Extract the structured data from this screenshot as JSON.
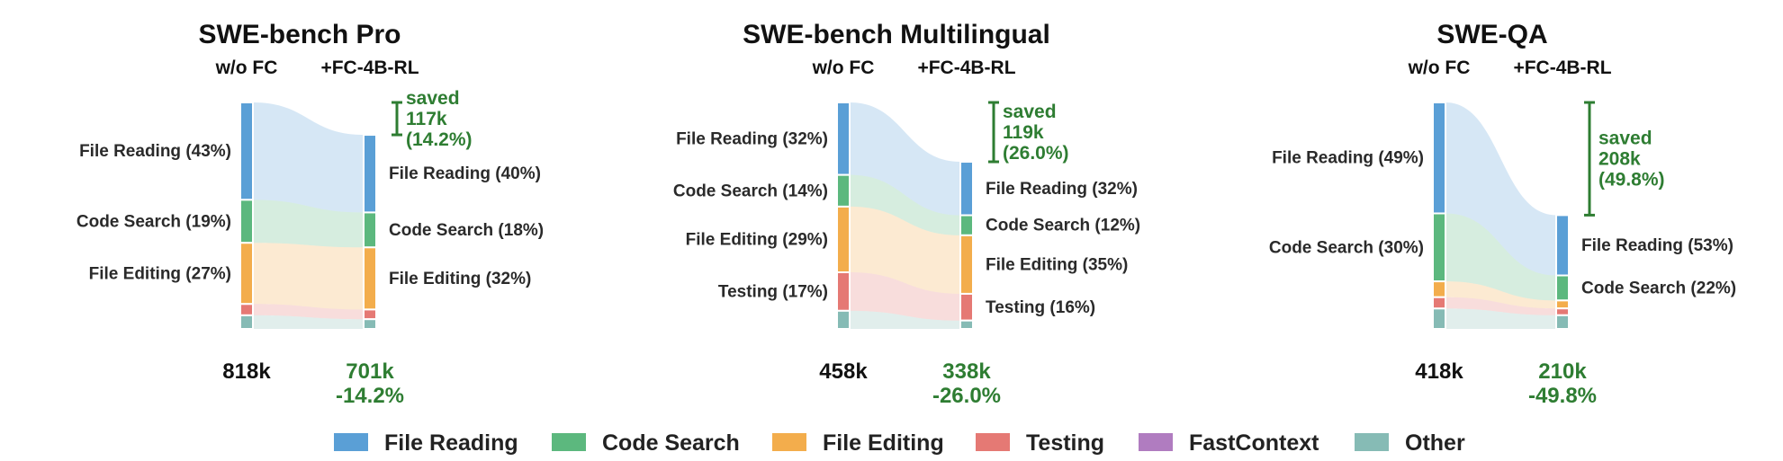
{
  "colors": {
    "File Reading": "#5a9fd6",
    "Code Search": "#5cb87e",
    "File Editing": "#f3ad4c",
    "Testing": "#e57974",
    "FastContext": "#b07cc0",
    "Other": "#86bbb5",
    "saved": "#2e7d32"
  },
  "legend": [
    "File Reading",
    "Code Search",
    "File Editing",
    "Testing",
    "FastContext",
    "Other"
  ],
  "chart_data": [
    {
      "type": "sankey",
      "title": "SWE-bench Pro",
      "column_labels": [
        "w/o FC",
        "+FC-4B-RL"
      ],
      "left_total_label": "818k",
      "right_total_label": "701k",
      "right_change_label": "-14.2%",
      "saved_label": "saved",
      "saved_amount": "117k",
      "saved_pct": "(14.2%)",
      "left_total": 818,
      "right_total": 701,
      "left": [
        {
          "category": "File Reading",
          "share": 0.43,
          "label": "File Reading (43%)"
        },
        {
          "category": "Code Search",
          "share": 0.19,
          "label": "Code Search (19%)"
        },
        {
          "category": "File Editing",
          "share": 0.27,
          "label": "File Editing (27%)"
        },
        {
          "category": "Testing",
          "share": 0.05,
          "label": ""
        },
        {
          "category": "Other",
          "share": 0.06,
          "label": ""
        }
      ],
      "right": [
        {
          "category": "File Reading",
          "share": 0.4,
          "label": "File Reading (40%)"
        },
        {
          "category": "Code Search",
          "share": 0.18,
          "label": "Code Search (18%)"
        },
        {
          "category": "File Editing",
          "share": 0.32,
          "label": "File Editing (32%)"
        },
        {
          "category": "Testing",
          "share": 0.05,
          "label": ""
        },
        {
          "category": "Other",
          "share": 0.05,
          "label": ""
        }
      ]
    },
    {
      "type": "sankey",
      "title": "SWE-bench Multilingual",
      "column_labels": [
        "w/o FC",
        "+FC-4B-RL"
      ],
      "left_total_label": "458k",
      "right_total_label": "338k",
      "right_change_label": "-26.0%",
      "saved_label": "saved",
      "saved_amount": "119k",
      "saved_pct": "(26.0%)",
      "left_total": 458,
      "right_total": 338,
      "left": [
        {
          "category": "File Reading",
          "share": 0.32,
          "label": "File Reading (32%)"
        },
        {
          "category": "Code Search",
          "share": 0.14,
          "label": "Code Search (14%)"
        },
        {
          "category": "File Editing",
          "share": 0.29,
          "label": "File Editing (29%)"
        },
        {
          "category": "Testing",
          "share": 0.17,
          "label": "Testing (17%)"
        },
        {
          "category": "Other",
          "share": 0.08,
          "label": ""
        }
      ],
      "right": [
        {
          "category": "File Reading",
          "share": 0.32,
          "label": "File Reading (32%)"
        },
        {
          "category": "Code Search",
          "share": 0.12,
          "label": "Code Search (12%)"
        },
        {
          "category": "File Editing",
          "share": 0.35,
          "label": "File Editing (35%)"
        },
        {
          "category": "Testing",
          "share": 0.16,
          "label": "Testing (16%)"
        },
        {
          "category": "Other",
          "share": 0.05,
          "label": ""
        }
      ]
    },
    {
      "type": "sankey",
      "title": "SWE-QA",
      "column_labels": [
        "w/o FC",
        "+FC-4B-RL"
      ],
      "left_total_label": "418k",
      "right_total_label": "210k",
      "right_change_label": "-49.8%",
      "saved_label": "saved",
      "saved_amount": "208k",
      "saved_pct": "(49.8%)",
      "left_total": 418,
      "right_total": 210,
      "left": [
        {
          "category": "File Reading",
          "share": 0.49,
          "label": "File Reading (49%)"
        },
        {
          "category": "Code Search",
          "share": 0.3,
          "label": "Code Search (30%)"
        },
        {
          "category": "File Editing",
          "share": 0.07,
          "label": ""
        },
        {
          "category": "Testing",
          "share": 0.05,
          "label": ""
        },
        {
          "category": "Other",
          "share": 0.09,
          "label": ""
        }
      ],
      "right": [
        {
          "category": "File Reading",
          "share": 0.53,
          "label": "File Reading (53%)"
        },
        {
          "category": "Code Search",
          "share": 0.22,
          "label": "Code Search (22%)"
        },
        {
          "category": "File Editing",
          "share": 0.07,
          "label": ""
        },
        {
          "category": "Testing",
          "share": 0.06,
          "label": ""
        },
        {
          "category": "Other",
          "share": 0.12,
          "label": ""
        }
      ]
    }
  ]
}
